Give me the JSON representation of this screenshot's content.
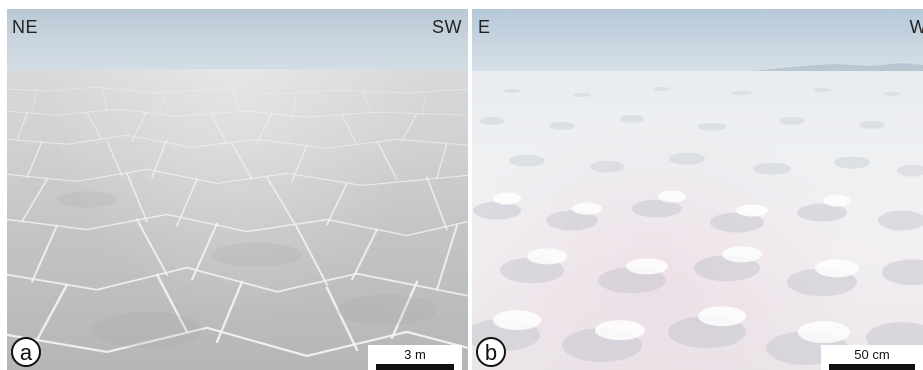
{
  "panels": [
    {
      "id": "a",
      "letter": "a",
      "direction_left": "NE",
      "direction_right": "SW",
      "scale_label": "3 m",
      "sky_color": "#c9d5df",
      "ground_color": "#c3c4c4"
    },
    {
      "id": "b",
      "letter": "b",
      "direction_left": "E",
      "direction_right": "W",
      "scale_label": "50 cm",
      "sky_color": "#cad7e2",
      "ground_color": "#eef0f2"
    }
  ]
}
